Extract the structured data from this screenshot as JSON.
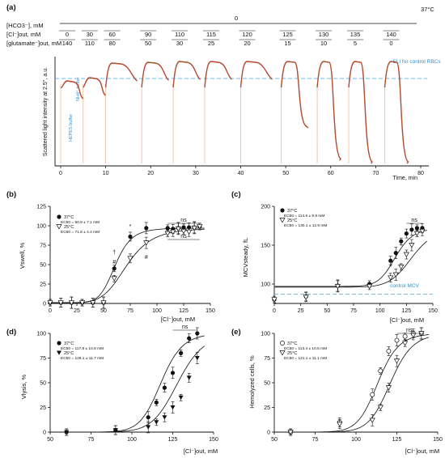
{
  "figure": {
    "panels": [
      "(a)",
      "(b)",
      "(c)",
      "(d)",
      "(e)"
    ]
  },
  "chart_data": [
    {
      "panel": "(a)",
      "type": "line",
      "temperature": "37°C",
      "xlabel": "Time, min",
      "ylabel": "Scattered light intensity at 2.5°, a.u.",
      "xticks": [
        "0",
        "10",
        "20",
        "30",
        "40",
        "50",
        "60",
        "70",
        "80"
      ],
      "xlim": [
        0,
        80
      ],
      "conditions": {
        "row_labels": [
          "[HCO3⁻], mM",
          "[Cl⁻]out, mM",
          "[glutamate⁻]out, mM"
        ],
        "hco3_value": "0",
        "cl_values": [
          "0",
          "30",
          "60",
          "90",
          "110",
          "115",
          "120",
          "125",
          "130",
          "135",
          "140"
        ],
        "glutamate_values": [
          "140",
          "110",
          "80",
          "50",
          "30",
          "25",
          "20",
          "15",
          "10",
          "5",
          "0"
        ]
      },
      "annotations": [
        "SLI for control RBCs",
        "HEPES buffer",
        "NH4⁺ buffer"
      ],
      "segment_starts": [
        0,
        5,
        10,
        18,
        25,
        32,
        40,
        49,
        57,
        64,
        72
      ],
      "segment_ends": [
        5,
        10,
        17,
        24,
        31,
        38,
        47,
        55,
        62,
        69,
        77
      ],
      "lysis_fraction": [
        0,
        0,
        0,
        0,
        0,
        0,
        0,
        0.65,
        0.97,
        1,
        1
      ]
    },
    {
      "panel": "(b)",
      "type": "scatter",
      "xlabel": "[Cl⁻]out, mM",
      "ylabel": "Vswell, %",
      "xlim": [
        0,
        150
      ],
      "ylim": [
        0,
        125
      ],
      "xticks": [
        "0",
        "25",
        "50",
        "75",
        "100",
        "125",
        "150"
      ],
      "yticks": [
        "0",
        "25",
        "50",
        "75",
        "100",
        "125"
      ],
      "series": [
        {
          "name": "37°C",
          "ec50": "EC50 = 60.9 ± 7.1 mM",
          "marker": "filled-circle",
          "x": [
            0,
            10,
            20,
            30,
            40,
            50,
            60,
            75,
            90,
            110,
            115,
            120,
            125,
            130,
            135,
            140
          ],
          "y": [
            1,
            1,
            1,
            1,
            1,
            1,
            45,
            86,
            97,
            97,
            96,
            97,
            98,
            98,
            98,
            99
          ]
        },
        {
          "name": "25°C",
          "ec50": "EC50 = 71.8 ± 4.4 mM",
          "marker": "open-triangle",
          "x": [
            0,
            10,
            20,
            30,
            40,
            50,
            60,
            75,
            90,
            110,
            115,
            120,
            125,
            130,
            135,
            140
          ],
          "y": [
            1,
            1,
            1,
            1,
            1,
            1,
            32,
            58,
            78,
            90,
            92,
            96,
            93,
            92,
            97,
            99
          ]
        }
      ],
      "significance": [
        "ns",
        "ns",
        "*",
        "†",
        "#",
        "#"
      ]
    },
    {
      "panel": "(c)",
      "type": "scatter",
      "xlabel": "[Cl⁻]out, mM",
      "ylabel": "MCVsteady, fL",
      "xlim": [
        0,
        150
      ],
      "ylim": [
        75,
        200
      ],
      "xticks": [
        "0",
        "25",
        "50",
        "75",
        "100",
        "125",
        "150"
      ],
      "yticks": [
        "100",
        "150",
        "200"
      ],
      "reference_line": "control MCV",
      "series": [
        {
          "name": "37°C",
          "ec50": "EC50 = 114.6 ± 9.9 mM",
          "marker": "filled-circle",
          "x": [
            0,
            30,
            60,
            90,
            110,
            115,
            120,
            125,
            130,
            135,
            140
          ],
          "y": [
            80,
            84,
            98,
            100,
            130,
            140,
            155,
            165,
            170,
            172,
            172
          ]
        },
        {
          "name": "25°C",
          "ec50": "EC50 = 130.1 ± 12.9 mM",
          "marker": "open-triangle",
          "x": [
            0,
            30,
            60,
            90,
            110,
            115,
            120,
            125,
            130,
            135,
            140
          ],
          "y": [
            80,
            83,
            97,
            97,
            108,
            112,
            122,
            138,
            150,
            165,
            168
          ]
        }
      ],
      "significance": [
        "ns",
        "*",
        "*",
        "*"
      ]
    },
    {
      "panel": "(d)",
      "type": "scatter",
      "xlabel": "[Cl⁻]out, mM",
      "ylabel": "Vlysis, %",
      "xlim": [
        50,
        150
      ],
      "ylim": [
        0,
        100
      ],
      "xticks": [
        "50",
        "75",
        "100",
        "125",
        "150"
      ],
      "yticks": [
        "0",
        "25",
        "50",
        "75",
        "100"
      ],
      "series": [
        {
          "name": "37°C",
          "ec50": "EC50 = 117.8 ± 10.8 mM",
          "marker": "filled-circle",
          "x": [
            60,
            90,
            110,
            115,
            120,
            125,
            130,
            135,
            140
          ],
          "y": [
            0,
            2,
            15,
            30,
            45,
            60,
            80,
            95,
            100
          ]
        },
        {
          "name": "25°C",
          "ec50": "EC50 = 128.1 ± 11.7 mM",
          "marker": "filled-triangle",
          "x": [
            60,
            90,
            110,
            115,
            120,
            125,
            130,
            135,
            140
          ],
          "y": [
            0,
            2,
            5,
            10,
            15,
            25,
            35,
            55,
            75
          ]
        }
      ],
      "significance": [
        "ns"
      ]
    },
    {
      "panel": "(e)",
      "type": "scatter",
      "xlabel": "[Cl⁻]out, mM",
      "ylabel": "Hemolyzed cells, %",
      "xlim": [
        50,
        150
      ],
      "ylim": [
        0,
        100
      ],
      "xticks": [
        "50",
        "75",
        "100",
        "125",
        "150"
      ],
      "yticks": [
        "0",
        "25",
        "50",
        "75",
        "100"
      ],
      "series": [
        {
          "name": "37°C",
          "ec50": "EC50 = 113.4 ± 10.5 mM",
          "marker": "open-circle",
          "x": [
            60,
            90,
            110,
            115,
            120,
            125,
            130,
            135,
            140
          ],
          "y": [
            0,
            10,
            38,
            62,
            82,
            93,
            97,
            100,
            100
          ]
        },
        {
          "name": "25°C",
          "ec50": "EC50 = 121.1 ± 11.1 mM",
          "marker": "open-triangle",
          "x": [
            60,
            90,
            110,
            115,
            120,
            125,
            130,
            135,
            140
          ],
          "y": [
            0,
            8,
            12,
            25,
            45,
            72,
            90,
            98,
            100
          ]
        }
      ],
      "significance": [
        "ns"
      ]
    }
  ]
}
